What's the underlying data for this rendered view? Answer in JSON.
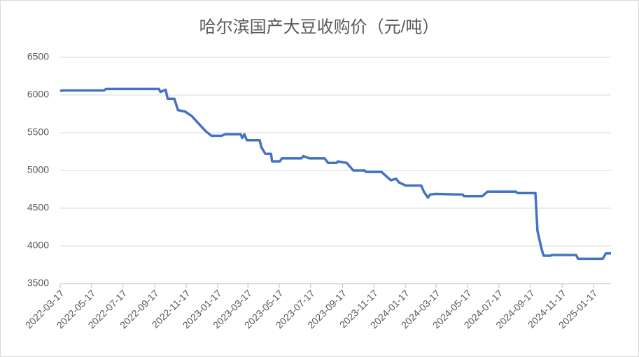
{
  "chart_data": {
    "type": "line",
    "title": "哈尔滨国产大豆收购价（元/吨）",
    "color": "#4472c4",
    "grid": true,
    "xlim": [
      "2022-03-17",
      "2025-02-20"
    ],
    "xticks": [
      "2022-03-17",
      "2022-05-17",
      "2022-07-17",
      "2022-09-17",
      "2022-11-17",
      "2023-01-17",
      "2023-03-17",
      "2023-05-17",
      "2023-07-17",
      "2023-09-17",
      "2023-11-17",
      "2024-01-17",
      "2024-03-17",
      "2024-05-17",
      "2024-07-17",
      "2024-09-17",
      "2024-11-17",
      "2025-01-17"
    ],
    "ylim": [
      3500,
      6500
    ],
    "yticks": [
      3500,
      4000,
      4500,
      5000,
      5500,
      6000,
      6500
    ],
    "x": [
      "2022-03-17",
      "2022-03-20",
      "2022-06-10",
      "2022-06-14",
      "2022-09-25",
      "2022-09-28",
      "2022-10-08",
      "2022-10-12",
      "2022-10-25",
      "2022-11-01",
      "2022-11-15",
      "2022-11-28",
      "2022-12-10",
      "2022-12-25",
      "2023-01-05",
      "2023-01-25",
      "2023-02-01",
      "2023-03-03",
      "2023-03-06",
      "2023-03-10",
      "2023-03-15",
      "2023-04-09",
      "2023-04-12",
      "2023-04-20",
      "2023-05-01",
      "2023-05-03",
      "2023-05-18",
      "2023-05-22",
      "2023-06-29",
      "2023-07-03",
      "2023-07-15",
      "2023-08-13",
      "2023-08-20",
      "2023-09-05",
      "2023-09-08",
      "2023-09-25",
      "2023-10-08",
      "2023-10-30",
      "2023-11-02",
      "2023-12-02",
      "2023-12-10",
      "2023-12-20",
      "2023-12-30",
      "2024-01-05",
      "2024-01-18",
      "2024-02-17",
      "2024-02-22",
      "2024-03-01",
      "2024-03-05",
      "2024-03-15",
      "2024-05-08",
      "2024-05-10",
      "2024-06-15",
      "2024-06-25",
      "2024-08-19",
      "2024-08-22",
      "2024-09-26",
      "2024-09-30",
      "2024-10-08",
      "2024-10-12",
      "2024-10-25",
      "2024-10-28",
      "2024-12-14",
      "2024-12-18",
      "2025-02-04",
      "2025-02-10",
      "2025-02-20"
    ],
    "values": [
      6050,
      6060,
      6060,
      6080,
      6080,
      6040,
      6070,
      5950,
      5950,
      5800,
      5780,
      5720,
      5630,
      5520,
      5460,
      5460,
      5480,
      5480,
      5430,
      5480,
      5400,
      5400,
      5310,
      5220,
      5220,
      5120,
      5120,
      5160,
      5160,
      5190,
      5160,
      5160,
      5100,
      5100,
      5120,
      5100,
      5000,
      5000,
      4980,
      4980,
      4930,
      4870,
      4890,
      4840,
      4800,
      4800,
      4720,
      4640,
      4680,
      4690,
      4680,
      4660,
      4660,
      4720,
      4720,
      4700,
      4700,
      4200,
      3960,
      3870,
      3870,
      3880,
      3880,
      3830,
      3830,
      3900,
      3900
    ]
  }
}
